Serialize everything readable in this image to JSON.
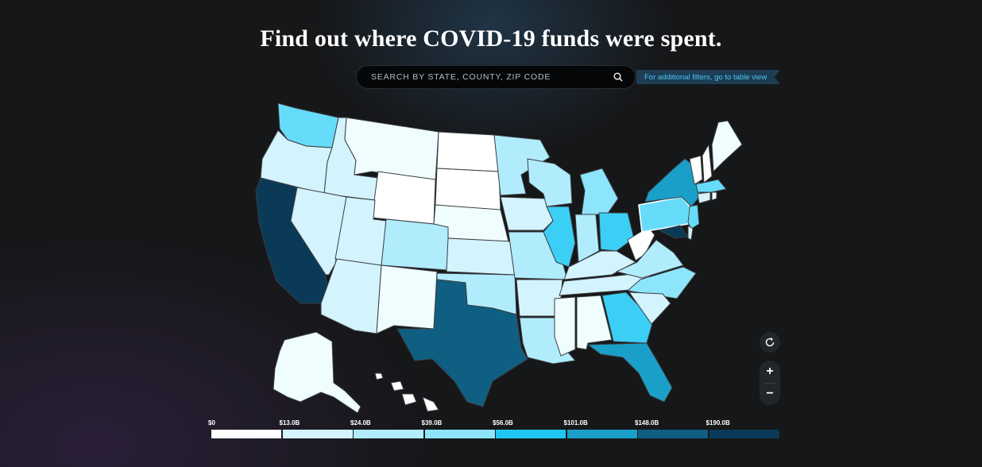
{
  "title": "Find out where COVID-19 funds were spent.",
  "search": {
    "placeholder": "SEARCH BY STATE, COUNTY, ZIP CODE",
    "icon": "search-icon"
  },
  "table_view_link": "For additional filters, go to table view",
  "controls": {
    "reset": "reset-icon",
    "zoom_in": "+",
    "zoom_out": "−"
  },
  "legend": {
    "ticks": [
      "$0",
      "$13.0B",
      "$24.0B",
      "$39.0B",
      "$56.0B",
      "$101.0B",
      "$148.0B",
      "$190.0B"
    ],
    "colors": [
      "#ffffff",
      "#d3f3fd",
      "#b1ecfd",
      "#8de5fc",
      "#1fc8f3",
      "#1aa0c8",
      "#0f5f82",
      "#0a3a57"
    ]
  },
  "map_colors": {
    "outline": "#3a3d41",
    "highlight_stroke": "#ffffff"
  }
}
